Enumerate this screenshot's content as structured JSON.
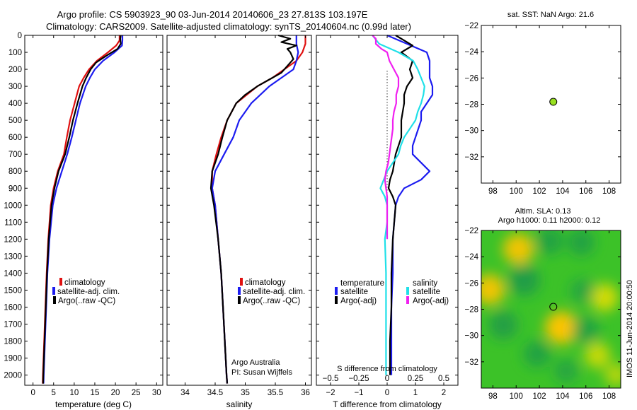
{
  "figure": {
    "title_line1": "Argo profile: CS 5903923_90 03-Jun-2014 20140606_23 27.813S 103.197E",
    "title_line2": "Climatology: CARS2009. Satellite-adjusted climatology: synTS_20140604.nc (0.99d later)",
    "side_stamp": "IMOS 11-Jun-2014 20:00:50",
    "credit_line1": "Argo Australia",
    "credit_line2": "PI: Susan Wijffels"
  },
  "colors": {
    "climatology": "#e01010",
    "satellite": "#1c1cf0",
    "argo": "#000000",
    "sat_diff_salinity": "#20e0e8",
    "argo_diff_salinity": "#f020f0",
    "float_marker": "#98e020"
  },
  "chart_data": [
    {
      "type": "line",
      "name": "temperature-profile",
      "xlabel": "temperature (deg C)",
      "ylabel": "",
      "xlim": [
        -2,
        31.5
      ],
      "ylim": [
        2060,
        0
      ],
      "xticks": [
        0,
        5,
        10,
        15,
        20,
        25,
        30
      ],
      "yticks": [
        0,
        100,
        200,
        300,
        400,
        500,
        600,
        700,
        800,
        900,
        1000,
        1100,
        1200,
        1300,
        1400,
        1500,
        1600,
        1700,
        1800,
        1900,
        2000
      ],
      "legend": [
        "climatology",
        "satellite-adj. clim.",
        "Argo(..raw -QC)"
      ],
      "legend_position": "lower-center",
      "series": [
        {
          "name": "climatology",
          "depth": [
            0,
            30,
            60,
            100,
            150,
            200,
            250,
            300,
            400,
            500,
            600,
            700,
            800,
            900,
            1000,
            1200,
            1400,
            1600,
            1800,
            2000,
            2050
          ],
          "values": [
            21.0,
            21.0,
            20.2,
            18.2,
            15.5,
            13.6,
            12.3,
            11.2,
            10.1,
            9.0,
            8.2,
            7.5,
            6.0,
            5.0,
            4.3,
            3.7,
            3.3,
            3.0,
            2.7,
            2.4,
            2.35
          ]
        },
        {
          "name": "satellite-adj. clim.",
          "depth": [
            0,
            30,
            60,
            100,
            150,
            200,
            250,
            300,
            400,
            500,
            600,
            700,
            800,
            900,
            1000,
            1200,
            1400,
            1600,
            1800,
            2000,
            2050
          ],
          "values": [
            21.7,
            21.7,
            21.6,
            19.8,
            17.0,
            15.0,
            13.8,
            12.8,
            11.4,
            10.4,
            9.4,
            8.3,
            7.0,
            5.7,
            4.8,
            4.0,
            3.5,
            3.2,
            2.9,
            2.6,
            2.55
          ]
        },
        {
          "name": "Argo(..raw -QC)",
          "depth": [
            0,
            20,
            50,
            80,
            120,
            160,
            200,
            250,
            300,
            400,
            500,
            600,
            700,
            800,
            900,
            1000,
            1200,
            1400,
            1600,
            1800,
            2000,
            2050
          ],
          "values": [
            21.3,
            21.2,
            21.3,
            20.5,
            17.8,
            15.3,
            14.0,
            12.9,
            12.0,
            10.8,
            9.7,
            8.8,
            7.8,
            6.2,
            5.2,
            4.5,
            3.8,
            3.4,
            3.1,
            2.8,
            2.5,
            2.45
          ]
        }
      ]
    },
    {
      "type": "line",
      "name": "salinity-profile",
      "xlabel": "salinity",
      "ylabel": "",
      "xlim": [
        33.7,
        36.1
      ],
      "ylim": [
        2060,
        0
      ],
      "xticks": [
        34,
        34.5,
        35,
        35.5,
        36
      ],
      "legend": [
        "climatology",
        "satellite-adj. clim.",
        "Argo(..raw -QC)"
      ],
      "legend_position": "lower-right",
      "series": [
        {
          "name": "climatology",
          "depth": [
            0,
            50,
            100,
            150,
            200,
            250,
            300,
            400,
            500,
            600,
            700,
            800,
            900,
            1000,
            1200,
            1400,
            1600,
            1800,
            2000,
            2050
          ],
          "values": [
            36.0,
            36.0,
            35.95,
            35.85,
            35.65,
            35.45,
            35.2,
            34.85,
            34.7,
            34.6,
            34.52,
            34.45,
            34.45,
            34.5,
            34.55,
            34.6,
            34.63,
            34.66,
            34.69,
            34.7
          ]
        },
        {
          "name": "satellite-adj. clim.",
          "depth": [
            0,
            50,
            100,
            150,
            200,
            250,
            300,
            400,
            500,
            600,
            700,
            800,
            900,
            1000,
            1200,
            1400,
            1600,
            1800,
            2000,
            2050
          ],
          "values": [
            35.85,
            35.85,
            35.88,
            35.85,
            35.8,
            35.6,
            35.4,
            35.1,
            34.9,
            34.8,
            34.65,
            34.5,
            34.45,
            34.5,
            34.55,
            34.6,
            34.63,
            34.66,
            34.69,
            34.7
          ]
        },
        {
          "name": "Argo(..raw -QC)",
          "depth": [
            0,
            20,
            40,
            60,
            80,
            100,
            140,
            180,
            220,
            260,
            300,
            350,
            400,
            500,
            600,
            700,
            800,
            900,
            1000,
            1200,
            1400,
            1600,
            1800,
            2000,
            2050
          ],
          "values": [
            35.55,
            35.75,
            35.6,
            35.85,
            35.7,
            35.75,
            35.8,
            35.7,
            35.6,
            35.4,
            35.2,
            35.0,
            34.85,
            34.7,
            34.62,
            34.55,
            34.45,
            34.43,
            34.48,
            34.55,
            34.6,
            34.63,
            34.66,
            34.69,
            34.7
          ]
        }
      ]
    },
    {
      "type": "line",
      "name": "difference-profile",
      "xlabel": "T difference from climatology",
      "xlabel_top": "S difference from climatology",
      "ylabel": "",
      "xlim": [
        -2.5,
        2.5
      ],
      "ylim": [
        2060,
        0
      ],
      "xticks": [
        -2,
        -1,
        0,
        1,
        2
      ],
      "xticks_salinity": [
        -0.5,
        -0.25,
        0,
        0.25,
        0.5
      ],
      "legend_groups": [
        {
          "title": "temperature",
          "entries": [
            "satellite",
            "Argo(-adj)"
          ]
        },
        {
          "title": "salinity",
          "entries": [
            "satellite",
            "Argo(-adj)"
          ]
        }
      ],
      "legend_position": "lower-center",
      "series": [
        {
          "name": "temperature satellite",
          "depth": [
            0,
            50,
            100,
            150,
            200,
            250,
            300,
            350,
            400,
            450,
            500,
            550,
            600,
            650,
            700,
            750,
            800,
            850,
            900,
            950,
            1000,
            1100,
            1200,
            1400,
            1600,
            1800,
            2000
          ],
          "values": [
            0.0,
            0.7,
            1.4,
            1.5,
            1.5,
            1.5,
            1.6,
            1.6,
            1.4,
            1.2,
            1.2,
            1.1,
            1.0,
            0.9,
            0.9,
            1.2,
            1.5,
            1.2,
            0.6,
            0.4,
            0.3,
            0.25,
            0.2,
            0.2,
            0.15,
            0.15,
            0.15
          ]
        },
        {
          "name": "temperature Argo(-adj)",
          "depth": [
            0,
            30,
            60,
            100,
            150,
            200,
            250,
            300,
            350,
            400,
            450,
            500,
            550,
            600,
            650,
            700,
            750,
            800,
            850,
            900,
            950,
            1000,
            1100,
            1200,
            1400,
            1600,
            1800,
            2000
          ],
          "values": [
            0.3,
            0.6,
            0.9,
            0.5,
            0.9,
            0.8,
            0.9,
            0.7,
            0.6,
            0.6,
            0.55,
            0.5,
            0.5,
            0.5,
            0.4,
            0.3,
            0.25,
            0.2,
            0.1,
            0.05,
            0.2,
            0.3,
            0.25,
            0.2,
            0.15,
            0.15,
            0.1,
            0.1
          ]
        },
        {
          "name": "salinity satellite",
          "depth": [
            0,
            50,
            100,
            150,
            200,
            250,
            300,
            350,
            400,
            450,
            500,
            550,
            600,
            650,
            700,
            750,
            800,
            850,
            900,
            950,
            1000,
            1100,
            1200,
            1400,
            1600,
            1800,
            2000
          ],
          "values": [
            -0.13,
            -0.07,
            0.1,
            0.23,
            0.27,
            0.3,
            0.33,
            0.32,
            0.3,
            0.27,
            0.25,
            0.2,
            0.15,
            0.12,
            0.1,
            0.05,
            0.0,
            -0.03,
            -0.06,
            -0.02,
            0.0,
            0.0,
            -0.02,
            -0.01,
            -0.01,
            -0.01,
            -0.01
          ]
        },
        {
          "name": "salinity Argo(-adj)",
          "depth": [
            0,
            20,
            50,
            80,
            100,
            150,
            200,
            250,
            300,
            350,
            400,
            450,
            500,
            550,
            600,
            650,
            700,
            750,
            800,
            850,
            900,
            950,
            1000,
            1100,
            1200
          ],
          "values": [
            -0.13,
            -0.1,
            -0.1,
            -0.05,
            0.0,
            0.02,
            0.06,
            0.1,
            0.1,
            0.08,
            0.08,
            0.06,
            0.05,
            0.05,
            0.04,
            0.03,
            0.02,
            0.01,
            -0.01,
            -0.02,
            -0.01,
            0.0,
            0.0,
            0.0,
            0.0
          ]
        }
      ]
    },
    {
      "type": "scatter",
      "name": "location-map",
      "title": "sat. SST: NaN Argo: 21.6",
      "xlim": [
        97,
        109
      ],
      "ylim": [
        -34,
        -22
      ],
      "xticks": [
        98,
        100,
        102,
        104,
        106,
        108
      ],
      "yticks": [
        -22,
        -24,
        -26,
        -28,
        -30,
        -32
      ],
      "points": [
        {
          "x": 103.197,
          "y": -27.813
        }
      ]
    },
    {
      "type": "heatmap",
      "name": "altimetry-map",
      "title_line1": "Altim. SLA: 0.13",
      "title_line2": "Argo h1000: 0.11 h2000: 0.12",
      "xlim": [
        97,
        109
      ],
      "ylim": [
        -34,
        -22
      ],
      "xticks": [
        98,
        100,
        102,
        104,
        106,
        108
      ],
      "yticks": [
        -22,
        -24,
        -26,
        -28,
        -30,
        -32
      ],
      "points": [
        {
          "x": 103.197,
          "y": -27.813
        }
      ],
      "blobs": [
        {
          "x": 100.2,
          "y": -23.4,
          "v": 0.7
        },
        {
          "x": 97.7,
          "y": -26.5,
          "v": 0.7
        },
        {
          "x": 103.9,
          "y": -29.4,
          "v": 0.8
        },
        {
          "x": 107.6,
          "y": -27.1,
          "v": 0.55
        },
        {
          "x": 107.0,
          "y": -31.5,
          "v": 0.45
        },
        {
          "x": 100.7,
          "y": -25.8,
          "v": -0.7
        },
        {
          "x": 102.9,
          "y": -22.8,
          "v": -0.5
        },
        {
          "x": 105.6,
          "y": -22.9,
          "v": -0.5
        },
        {
          "x": 98.9,
          "y": -29.2,
          "v": -0.6
        },
        {
          "x": 101.8,
          "y": -31.4,
          "v": -0.5
        },
        {
          "x": 106.0,
          "y": -29.6,
          "v": -0.5
        },
        {
          "x": 105.7,
          "y": -26.6,
          "v": -0.35
        },
        {
          "x": 104.3,
          "y": -32.7,
          "v": -0.35
        },
        {
          "x": 108.6,
          "y": -33.0,
          "v": 0.3
        }
      ]
    }
  ]
}
